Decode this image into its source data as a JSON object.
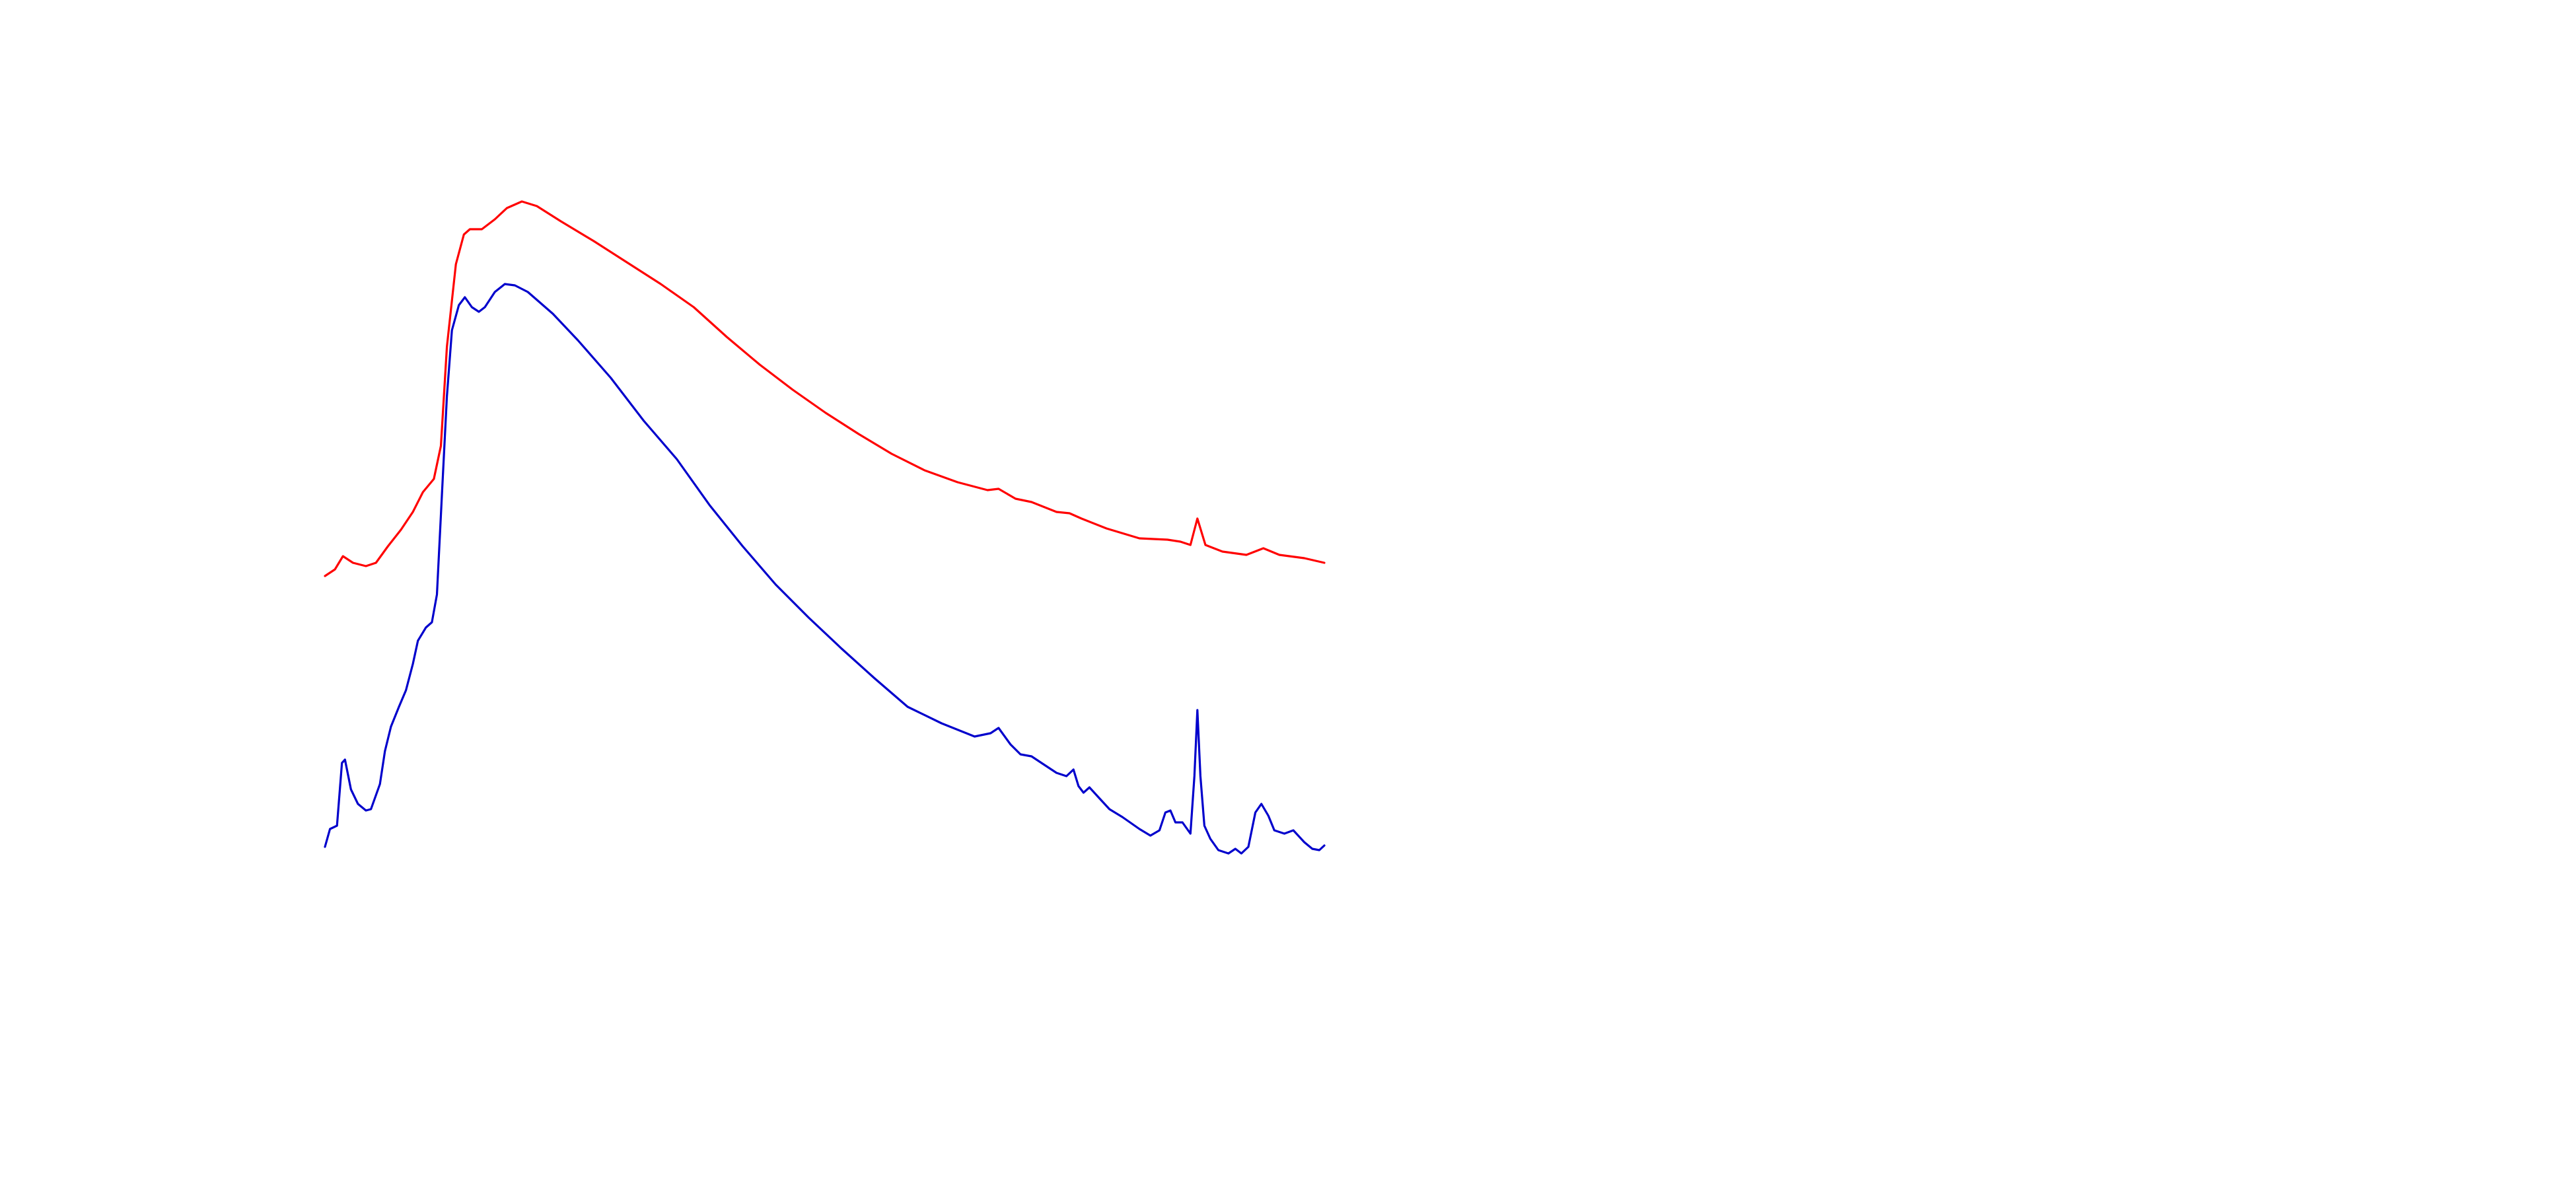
{
  "chart_data": {
    "type": "line",
    "xlim": [
      0,
      100
    ],
    "ylim": [
      0,
      100
    ],
    "series": [
      {
        "color": "#ff0000",
        "x": [
          0,
          1.0,
          1.8,
          2.8,
          4.1,
          5.1,
          6.3,
          7.6,
          8.8,
          9.8,
          10.9,
          11.6,
          12.2,
          13.1,
          13.9,
          14.5,
          15.7,
          17.0,
          18.2,
          19.7,
          21.2,
          23.6,
          26.9,
          30.2,
          33.6,
          36.9,
          40.2,
          43.5,
          46.8,
          50.1,
          53.4,
          56.7,
          60.0,
          63.3,
          66.3,
          67.4,
          69.1,
          70.7,
          73.2,
          74.5,
          75.7,
          78.2,
          81.5,
          84.3,
          85.6,
          86.6,
          87.3,
          88.1,
          89.8,
          92.2,
          93.9,
          95.5,
          98.0,
          100
        ],
        "values": [
          42.8,
          43.8,
          45.8,
          44.8,
          44.3,
          44.8,
          47.3,
          49.8,
          52.5,
          55.5,
          57.5,
          62.5,
          77.5,
          90,
          94.5,
          95.3,
          95.3,
          96.8,
          98.5,
          99.5,
          98.8,
          96.5,
          93.5,
          90.3,
          87,
          83.5,
          79,
          74.8,
          71,
          67.5,
          64.3,
          61.3,
          58.8,
          57,
          55.8,
          56,
          54.5,
          54,
          52.5,
          52.3,
          51.5,
          50,
          48.5,
          48.3,
          48,
          47.5,
          51.5,
          47.5,
          46.5,
          46,
          47,
          46,
          45.5,
          44.8
        ]
      },
      {
        "color": "#0000cc",
        "x": [
          0,
          0.5,
          1.2,
          1.7,
          2.0,
          2.6,
          3.3,
          4.1,
          4.6,
          5.5,
          6.0,
          6.6,
          7.4,
          8.1,
          8.8,
          9.3,
          10.1,
          10.7,
          11.2,
          11.7,
          12.2,
          12.7,
          13.4,
          14.0,
          14.7,
          15.4,
          16.0,
          17.0,
          18.0,
          19.0,
          20.3,
          22.8,
          25.3,
          28.6,
          31.9,
          35.2,
          38.5,
          41.8,
          45.1,
          48.4,
          51.7,
          55.0,
          58.3,
          61.7,
          65.0,
          66.6,
          67.4,
          68.6,
          69.6,
          70.7,
          71.9,
          73.2,
          74.2,
          74.9,
          75.4,
          75.9,
          76.5,
          77.4,
          78.5,
          79.8,
          81.5,
          82.6,
          83.5,
          84.1,
          84.6,
          85.1,
          85.8,
          86.6,
          87.0,
          87.3,
          87.6,
          88.0,
          88.6,
          89.4,
          90.4,
          91.1,
          91.7,
          92.4,
          93.1,
          93.7,
          94.4,
          95.0,
          96.0,
          96.9,
          98.0,
          98.8,
          99.5,
          100
        ],
        "values": [
          1.8,
          4.5,
          5,
          14.5,
          15,
          10.5,
          8.3,
          7.3,
          7.5,
          11.3,
          16.3,
          20,
          23,
          25.5,
          29.5,
          33,
          35,
          35.8,
          40,
          55,
          70,
          80,
          83.8,
          85,
          83.5,
          82.8,
          83.5,
          85.8,
          87,
          86.8,
          85.8,
          82.5,
          78.5,
          72.8,
          66.3,
          60.5,
          53.5,
          47.3,
          41.5,
          36.5,
          31.8,
          27.3,
          23,
          20.5,
          18.5,
          19,
          19.8,
          17.3,
          15.8,
          15.5,
          14.3,
          13,
          12.5,
          13.5,
          11,
          10,
          10.8,
          9.3,
          7.5,
          6.3,
          4.5,
          3.5,
          4.3,
          7,
          7.3,
          5.5,
          5.5,
          3.8,
          12.5,
          22.5,
          12.5,
          5,
          3,
          1.3,
          0.8,
          1.5,
          0.8,
          1.8,
          7,
          8.3,
          6.5,
          4.3,
          3.8,
          4.3,
          2.5,
          1.5,
          1.3,
          2
        ]
      }
    ]
  }
}
